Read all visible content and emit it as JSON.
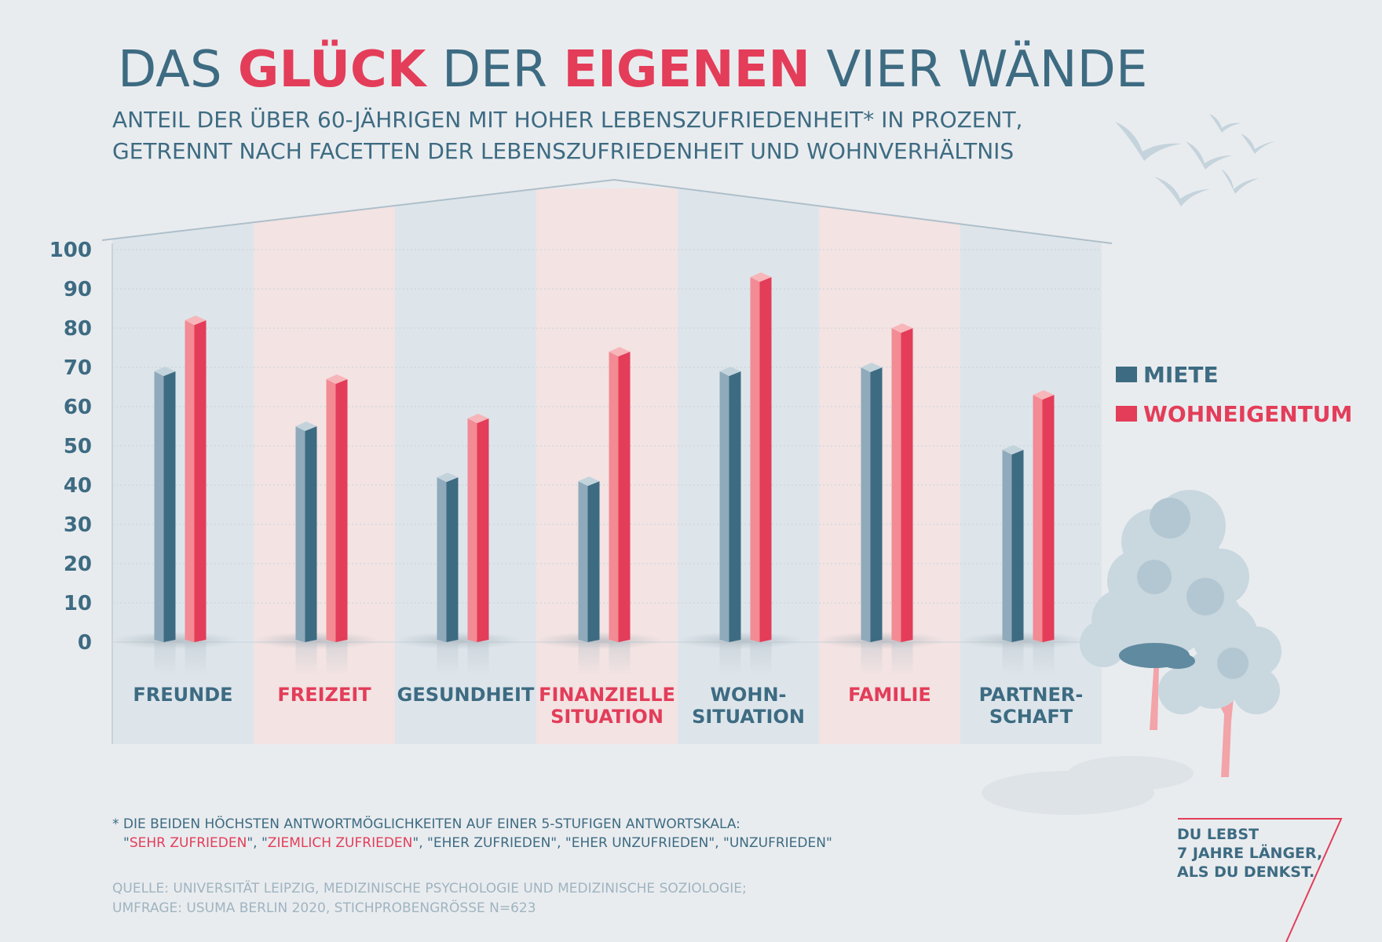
{
  "title": {
    "parts": [
      {
        "text": "DAS ",
        "highlight": false
      },
      {
        "text": "GLÜCK",
        "highlight": true
      },
      {
        "text": " DER ",
        "highlight": false
      },
      {
        "text": "EIGENEN",
        "highlight": true
      },
      {
        "text": " VIER WÄNDE",
        "highlight": false
      }
    ]
  },
  "subtitle": {
    "line1": "ANTEIL DER ÜBER 60-JÄHRIGEN MIT HOHER LEBENSZUFRIEDENHEIT* IN PROZENT,",
    "line2": "GETRENNT NACH FACETTEN DER LEBENSZUFRIEDENHEIT UND WOHNVERHÄLTNIS"
  },
  "colors": {
    "miete": "#3d6b82",
    "miete_light": "#8eaabb",
    "eigentum": "#e33d59",
    "eigentum_light": "#f28b93",
    "band_blue": "#dde5eb",
    "band_pink": "#f3e3e3",
    "text": "#3d6b82",
    "source": "#9fb4c0"
  },
  "chart_data": {
    "type": "bar",
    "ylim": [
      0,
      100
    ],
    "yticks": [
      "0",
      "10",
      "20",
      "30",
      "40",
      "50",
      "60",
      "70",
      "80",
      "90",
      "100"
    ],
    "grid": true,
    "legend_position": "right",
    "categories": [
      {
        "lines": [
          "FREUNDE"
        ],
        "tone": "blue"
      },
      {
        "lines": [
          "FREIZEIT"
        ],
        "tone": "pink"
      },
      {
        "lines": [
          "GESUNDHEIT"
        ],
        "tone": "blue"
      },
      {
        "lines": [
          "FINANZIELLE",
          "SITUATION"
        ],
        "tone": "pink"
      },
      {
        "lines": [
          "WOHN-",
          "SITUATION"
        ],
        "tone": "blue"
      },
      {
        "lines": [
          "FAMILIE"
        ],
        "tone": "pink"
      },
      {
        "lines": [
          "PARTNER-",
          "SCHAFT"
        ],
        "tone": "blue"
      }
    ],
    "series": [
      {
        "name": "MIETE",
        "values": [
          69,
          55,
          42,
          41,
          69,
          70,
          49
        ]
      },
      {
        "name": "WOHNEIGENTUM",
        "values": [
          82,
          67,
          57,
          74,
          93,
          80,
          63
        ]
      }
    ]
  },
  "footnote": {
    "line1": "* DIE BEIDEN HÖCHSTEN ANTWORTMÖGLICHKEITEN AUF EINER 5-STUFIGEN ANTWORTSKALA:",
    "line2_parts": [
      {
        "text": "\"",
        "red": false
      },
      {
        "text": "SEHR ZUFRIEDEN",
        "red": true
      },
      {
        "text": "\", \"",
        "red": false
      },
      {
        "text": "ZIEMLICH ZUFRIEDEN",
        "red": true
      },
      {
        "text": "\", \"EHER ZUFRIEDEN\", \"EHER UNZUFRIEDEN\", \"UNZUFRIEDEN\"",
        "red": false
      }
    ]
  },
  "source": {
    "line1": "QUELLE: UNIVERSITÄT LEIPZIG, MEDIZINISCHE PSYCHOLOGIE UND MEDIZINISCHE SOZIOLOGIE;",
    "line2": "UMFRAGE: USUMA BERLIN 2020, STICHPROBENGRÖSSE N=623"
  },
  "slogan": {
    "lines": [
      "DU LEBST",
      "7 JAHRE LÄNGER,",
      "ALS DU DENKST."
    ]
  }
}
